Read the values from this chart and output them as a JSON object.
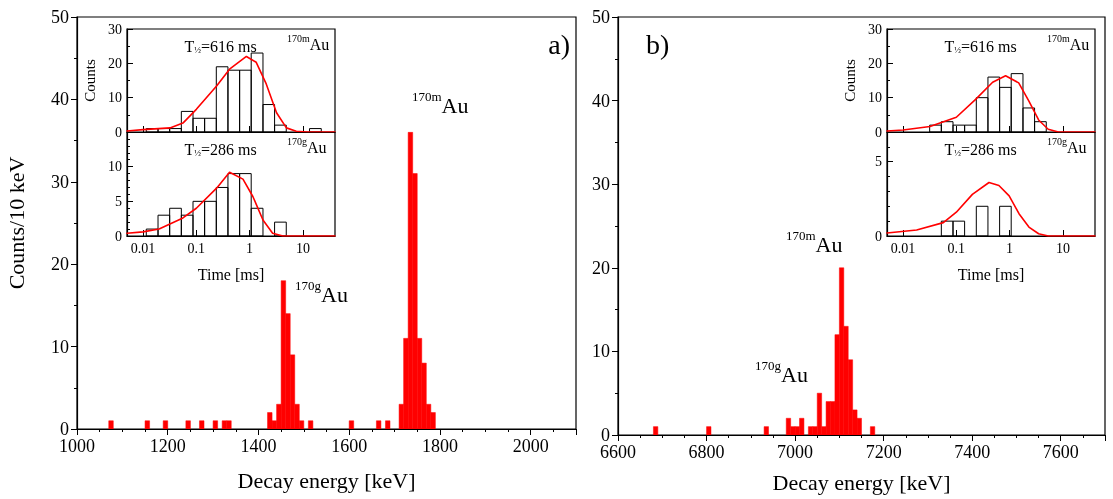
{
  "chart_data": [
    {
      "type": "histogram",
      "title": "a)",
      "xlabel": "Decay energy [keV]",
      "ylabel": "Counts/10 keV",
      "color": "#ff0000",
      "bins": [
        1070,
        1080,
        1090,
        1100,
        1110,
        1120,
        1130,
        1140,
        1150,
        1160,
        1170,
        1180,
        1190,
        1200,
        1210,
        1220,
        1230,
        1240,
        1250,
        1260,
        1270,
        1280,
        1290,
        1300,
        1310,
        1320,
        1330,
        1340,
        1350,
        1360,
        1370,
        1380,
        1390,
        1400,
        1410,
        1420,
        1430,
        1440,
        1450,
        1460,
        1470,
        1480,
        1490,
        1500,
        1510,
        1520,
        1530,
        1540,
        1550,
        1560,
        1570,
        1580,
        1590,
        1600,
        1610,
        1620,
        1630,
        1640,
        1650,
        1660,
        1670,
        1680,
        1690,
        1700,
        1710,
        1720,
        1730,
        1740,
        1750,
        1760,
        1770,
        1780,
        1790
      ],
      "values": [
        1,
        0,
        0,
        0,
        0,
        0,
        0,
        0,
        1,
        0,
        0,
        0,
        1,
        0,
        0,
        0,
        0,
        1,
        0,
        0,
        1,
        0,
        0,
        1,
        0,
        1,
        1,
        0,
        0,
        0,
        0,
        0,
        0,
        0,
        0,
        2,
        1,
        3,
        18,
        14,
        9,
        3,
        1,
        0,
        1,
        0,
        0,
        0,
        0,
        0,
        0,
        0,
        0,
        1,
        0,
        0,
        0,
        0,
        0,
        1,
        0,
        1,
        0,
        0,
        3,
        11,
        36,
        31,
        11,
        8,
        3,
        2
      ],
      "xlim": [
        1000,
        2100
      ],
      "xticks": [
        1000,
        1200,
        1400,
        1600,
        1800,
        2000
      ],
      "ylim": [
        0,
        50
      ],
      "yticks": [
        0,
        10,
        20,
        30,
        40,
        50
      ],
      "annotations": [
        "$^{170m}$Au",
        "$^{170g}$Au"
      ]
    },
    {
      "type": "histogram",
      "title": "$^{170m}$Au",
      "subtitle": "T$_{½}$=616 ms",
      "ylabel": "Counts",
      "color": "#000000",
      "log": "x",
      "tick_labels": "y",
      "bins": [
        0.0115,
        0.0191,
        0.0316,
        0.0523,
        0.0866,
        0.143,
        0.237,
        0.392,
        0.649,
        1.07,
        1.78,
        2.94,
        4.87,
        8.06,
        13.3,
        22.1
      ],
      "values": [
        1,
        1,
        1,
        6,
        4,
        4,
        19,
        18,
        18,
        23,
        8,
        2,
        0,
        0,
        1
      ],
      "series": [
        {
          "type": "line",
          "color": "#ff0000",
          "x": [
            0.005,
            0.01,
            0.032,
            0.056,
            0.1,
            0.24,
            0.42,
            0.87,
            1.33,
            2.05,
            3.2,
            4.9,
            7.5,
            12,
            40
          ],
          "values": [
            0.3,
            0.7,
            1.2,
            2.6,
            6.6,
            13.4,
            18.3,
            22,
            20.3,
            14,
            5.6,
            1.2,
            0.2,
            0,
            0
          ]
        }
      ],
      "xlim": [
        0.005,
        40
      ],
      "xticks": [
        0.01,
        0.1,
        1,
        10
      ],
      "ylim": [
        0,
        30
      ],
      "yticks": [
        0,
        10,
        20,
        30
      ]
    },
    {
      "type": "histogram",
      "title": "$^{170g}$Au",
      "subtitle": "T$_{½}$=286 ms",
      "xlabel": "Time [ms]",
      "color": "#000000",
      "log": "x",
      "bins": [
        0.0115,
        0.0191,
        0.0316,
        0.0523,
        0.0866,
        0.143,
        0.237,
        0.392,
        0.649,
        1.07,
        1.78,
        2.94,
        4.87,
        8.06,
        13.3,
        22.1
      ],
      "values": [
        1,
        3,
        4,
        3,
        5,
        5,
        7,
        9,
        9,
        4,
        0,
        2,
        0,
        0,
        0
      ],
      "series": [
        {
          "type": "line",
          "color": "#ff0000",
          "x": [
            0.005,
            0.01,
            0.02,
            0.056,
            0.1,
            0.24,
            0.42,
            0.75,
            1.15,
            1.78,
            2.7,
            4.2,
            40
          ],
          "values": [
            0.4,
            0.6,
            1,
            2.6,
            4,
            6.9,
            9.2,
            8.2,
            5.7,
            2.3,
            0.4,
            0,
            0
          ]
        }
      ],
      "xlim": [
        0.005,
        40
      ],
      "xticks": [
        0.01,
        0.1,
        1,
        10
      ],
      "ylim": [
        0,
        15
      ],
      "yticks": [
        0,
        5,
        10
      ]
    },
    {
      "type": "histogram",
      "title": "b)",
      "xlabel": "Decay energy [keV]",
      "color": "#ff0000",
      "bins": [
        6680,
        6690,
        6700,
        6710,
        6720,
        6730,
        6740,
        6750,
        6760,
        6770,
        6780,
        6790,
        6800,
        6810,
        6820,
        6830,
        6840,
        6850,
        6860,
        6870,
        6880,
        6890,
        6900,
        6910,
        6920,
        6930,
        6940,
        6950,
        6960,
        6970,
        6980,
        6990,
        7000,
        7010,
        7020,
        7030,
        7040,
        7050,
        7060,
        7070,
        7080,
        7090,
        7100,
        7110,
        7120,
        7130,
        7140,
        7150,
        7160,
        7170,
        7180
      ],
      "values": [
        1,
        0,
        0,
        0,
        0,
        0,
        0,
        0,
        0,
        0,
        0,
        0,
        1,
        0,
        0,
        0,
        0,
        0,
        0,
        0,
        0,
        0,
        0,
        0,
        0,
        1,
        0,
        0,
        0,
        0,
        2,
        1,
        1,
        2,
        0,
        1,
        1,
        5,
        1,
        4,
        4,
        12,
        20,
        13,
        9,
        3,
        2,
        0,
        0,
        1
      ],
      "xlim": [
        6600,
        7700
      ],
      "xticks": [
        6600,
        6800,
        7000,
        7200,
        7400,
        7600
      ],
      "ylim": [
        0,
        50
      ],
      "yticks": [
        0,
        10,
        20,
        30,
        40,
        50
      ],
      "annotations": [
        "$^{170m}$Au",
        "$^{170g}$Au"
      ]
    },
    {
      "type": "histogram",
      "title": "$^{170m}$Au",
      "subtitle": "T$_{½}$=616 ms",
      "ylabel": "Counts",
      "color": "#000000",
      "log": "x",
      "tick_labels": "y",
      "bins": [
        0.0115,
        0.0191,
        0.0316,
        0.0523,
        0.0866,
        0.143,
        0.237,
        0.392,
        0.649,
        1.07,
        1.78,
        2.94,
        4.87,
        8.06,
        13.3,
        22.1
      ],
      "values": [
        0,
        0,
        2,
        3,
        2,
        2,
        10,
        16,
        13,
        17,
        7,
        3,
        0,
        0,
        0
      ],
      "series": [
        {
          "type": "line",
          "color": "#ff0000",
          "x": [
            0.005,
            0.01,
            0.032,
            0.1,
            0.23,
            0.48,
            0.84,
            1.48,
            2.3,
            3.5,
            5.3,
            8.2,
            40
          ],
          "values": [
            0.3,
            0.6,
            1.6,
            4.3,
            9.5,
            14.5,
            16.4,
            14.3,
            9,
            3.5,
            0.8,
            0,
            0
          ]
        }
      ],
      "xlim": [
        0.005,
        40
      ],
      "xticks": [
        0.01,
        0.1,
        1,
        10
      ],
      "ylim": [
        0,
        30
      ],
      "yticks": [
        0,
        10,
        20,
        30
      ]
    },
    {
      "type": "histogram",
      "title": "$^{170g}$Au",
      "subtitle": "T$_{½}$=286 ms",
      "xlabel": "Time [ms]",
      "color": "#000000",
      "log": "x",
      "bins": [
        0.0115,
        0.0191,
        0.0316,
        0.0523,
        0.0866,
        0.143,
        0.237,
        0.392,
        0.649,
        1.07,
        1.78,
        2.94,
        4.87,
        8.06,
        13.3,
        22.1
      ],
      "values": [
        0,
        0,
        0,
        1,
        1,
        0,
        2,
        0,
        2,
        0,
        0,
        0,
        0,
        0,
        0
      ],
      "series": [
        {
          "type": "line",
          "color": "#ff0000",
          "x": [
            0.005,
            0.018,
            0.057,
            0.1,
            0.2,
            0.41,
            0.63,
            0.98,
            1.5,
            2.3,
            3.5,
            5.3,
            40
          ],
          "values": [
            0.2,
            0.4,
            0.9,
            1.6,
            2.8,
            3.6,
            3.4,
            2.7,
            1.5,
            0.6,
            0.15,
            0,
            0
          ]
        }
      ],
      "xlim": [
        0.005,
        40
      ],
      "xticks": [
        0.01,
        0.1,
        1,
        10
      ],
      "ylim": [
        0,
        7
      ],
      "yticks": [
        0,
        5
      ]
    }
  ]
}
